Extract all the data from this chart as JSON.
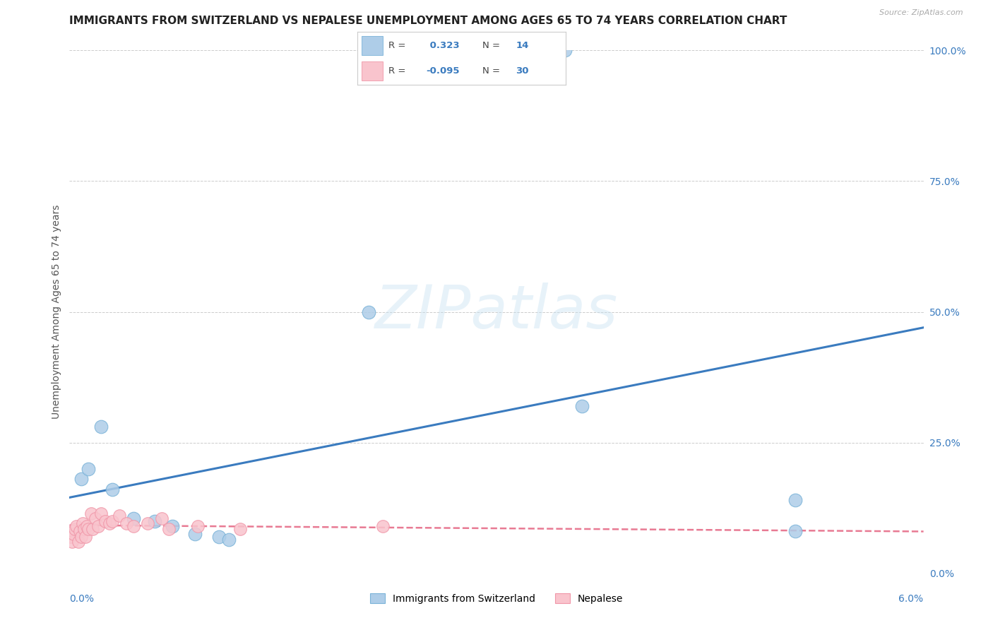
{
  "title": "IMMIGRANTS FROM SWITZERLAND VS NEPALESE UNEMPLOYMENT AMONG AGES 65 TO 74 YEARS CORRELATION CHART",
  "source": "Source: ZipAtlas.com",
  "ylabel": "Unemployment Among Ages 65 to 74 years",
  "xmin": 0.0,
  "xmax": 6.0,
  "ymin": 0.0,
  "ymax": 100.0,
  "yticks": [
    0,
    25,
    50,
    75,
    100
  ],
  "ytick_labels": [
    "0.0%",
    "25.0%",
    "50.0%",
    "75.0%",
    "100.0%"
  ],
  "watermark": "ZIPatlas",
  "legend1_label": "Immigrants from Switzerland",
  "legend2_label": "Nepalese",
  "r1": 0.323,
  "n1": 14,
  "r2": -0.095,
  "n2": 30,
  "blue_color": "#aecde8",
  "pink_color": "#f9c4cd",
  "blue_edge_color": "#7ab3d8",
  "pink_edge_color": "#f096a8",
  "blue_line_color": "#3a7bbf",
  "pink_line_color": "#e87a93",
  "r_label_color": "#3a7bbf",
  "grid_color": "#cccccc",
  "background_color": "#ffffff",
  "title_color": "#222222",
  "ylabel_color": "#555555",
  "title_fontsize": 11,
  "axis_label_fontsize": 10,
  "tick_fontsize": 10,
  "legend_fontsize": 10,
  "swiss_x": [
    0.08,
    0.13,
    0.22,
    0.3,
    0.45,
    0.6,
    0.72,
    0.88,
    1.05,
    1.12,
    2.1,
    3.6,
    5.1,
    5.1
  ],
  "swiss_y": [
    18.0,
    20.0,
    28.0,
    16.0,
    10.5,
    10.0,
    9.0,
    7.5,
    7.0,
    6.5,
    50.0,
    32.0,
    14.0,
    8.0
  ],
  "swiss_outlier_x": [
    3.48
  ],
  "swiss_outlier_y": [
    100.0
  ],
  "blue_line_y0": 14.5,
  "blue_line_y6": 47.0,
  "nepal_x": [
    0.01,
    0.02,
    0.03,
    0.04,
    0.05,
    0.06,
    0.07,
    0.08,
    0.09,
    0.1,
    0.11,
    0.12,
    0.13,
    0.15,
    0.16,
    0.18,
    0.2,
    0.22,
    0.25,
    0.28,
    0.3,
    0.35,
    0.4,
    0.45,
    0.55,
    0.65,
    0.7,
    0.9,
    1.2,
    2.2
  ],
  "nepal_y": [
    7.0,
    6.0,
    7.5,
    8.5,
    9.0,
    6.0,
    8.0,
    7.0,
    9.5,
    8.5,
    7.0,
    9.0,
    8.5,
    11.5,
    8.5,
    10.5,
    9.0,
    11.5,
    10.0,
    9.5,
    10.0,
    11.0,
    9.5,
    9.0,
    9.5,
    10.5,
    8.5,
    9.0,
    8.5,
    9.0
  ],
  "pink_line_y0": 9.2,
  "pink_line_y6": 8.0
}
